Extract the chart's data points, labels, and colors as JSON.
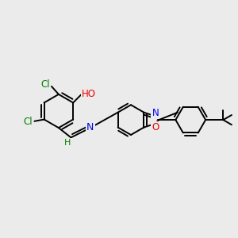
{
  "background_color": "#ebebeb",
  "atom_colors": {
    "C": "#000000",
    "H": "#008000",
    "N": "#0000ee",
    "O": "#ee0000",
    "Cl": "#008000"
  },
  "bond_color": "#000000",
  "bond_width": 1.4,
  "figsize": [
    3.0,
    3.0
  ],
  "dpi": 100,
  "xlim": [
    -2.5,
    2.8
  ],
  "ylim": [
    -1.4,
    1.4
  ]
}
